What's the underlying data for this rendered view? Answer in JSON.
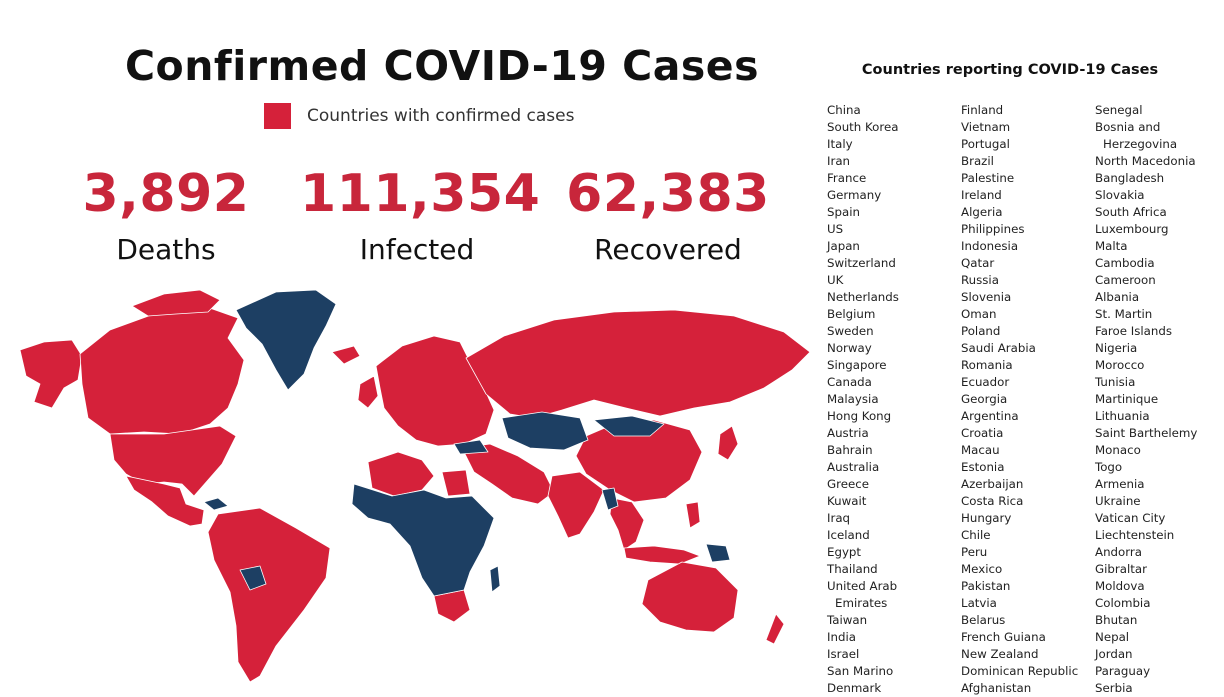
{
  "title": "Confirmed COVID-19 Cases",
  "legend": {
    "label": "Countries with confirmed cases",
    "color": "#d5213a"
  },
  "colors": {
    "confirmed": "#d5213a",
    "no_cases": "#1d3f63",
    "stat_number": "#c8263b"
  },
  "stats": {
    "deaths": {
      "value": "3,892",
      "label": "Deaths"
    },
    "infected": {
      "value": "111,354",
      "label": "Infected"
    },
    "recovered": {
      "value": "62,383",
      "label": "Recovered"
    }
  },
  "country_list": {
    "title": "Countries reporting COVID-19 Cases",
    "col1": [
      "China",
      "South Korea",
      "Italy",
      "Iran",
      "France",
      "Germany",
      "Spain",
      "US",
      "Japan",
      "Switzerland",
      "UK",
      "Netherlands",
      "Belgium",
      "Sweden",
      "Norway",
      "Singapore",
      "Canada",
      "Malaysia",
      "Hong Kong",
      "Austria",
      "Bahrain",
      "Australia",
      "Greece",
      "Kuwait",
      "Iraq",
      "Iceland",
      "Egypt",
      "Thailand",
      "United Arab",
      "Emirates",
      "Taiwan",
      "India",
      "Israel",
      "San Marino",
      "Denmark"
    ],
    "col2": [
      "Finland",
      "Vietnam",
      "Portugal",
      "Brazil",
      "Palestine",
      "Ireland",
      "Algeria",
      "Philippines",
      "Indonesia",
      "Qatar",
      "Russia",
      "Slovenia",
      "Oman",
      "Poland",
      "Saudi Arabia",
      "Romania",
      "Ecuador",
      "Georgia",
      "Argentina",
      "Croatia",
      "Macau",
      "Estonia",
      "Azerbaijan",
      "Costa Rica",
      "Hungary",
      "Chile",
      "Peru",
      "Mexico",
      "Pakistan",
      "Latvia",
      "Belarus",
      "French Guiana",
      "New Zealand",
      "Dominican Republic",
      "Afghanistan"
    ],
    "col3": [
      "Senegal",
      "Bosnia and",
      "Herzegovina",
      "North Macedonia",
      "Bangladesh",
      "Slovakia",
      "South Africa",
      "Luxembourg",
      "Malta",
      "Cambodia",
      "Cameroon",
      "Albania",
      "St. Martin",
      "Faroe Islands",
      "Nigeria",
      "Morocco",
      "Tunisia",
      "Martinique",
      "Lithuania",
      "Saint Barthelemy",
      "Monaco",
      "Togo",
      "Armenia",
      "Ukraine",
      "Vatican City",
      "Liechtenstein",
      "Andorra",
      "Gibraltar",
      "Moldova",
      "Colombia",
      "Bhutan",
      "Nepal",
      "Jordan",
      "Paraguay",
      "Serbia"
    ]
  }
}
